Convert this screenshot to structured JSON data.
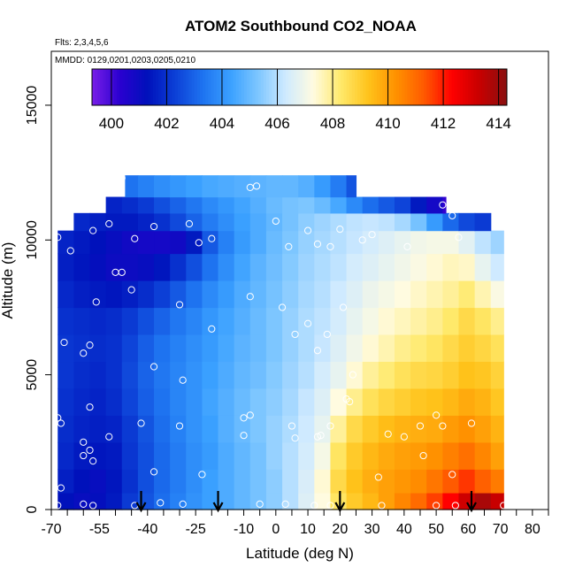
{
  "chart_data": {
    "type": "heatmap",
    "title": "ATOM2 Southbound CO2_NOAA",
    "flights_note": "Flts: 2,3,4,5,6",
    "dates_note": "MMDD: 0129,0201,0203,0205,0210",
    "xlabel": "Latitude (deg N)",
    "ylabel": "Altitude (m)",
    "xlim": [
      -70,
      85
    ],
    "ylim": [
      0,
      17000
    ],
    "x_ticks": [
      -70,
      -55,
      -40,
      -25,
      -10,
      0,
      10,
      20,
      30,
      40,
      50,
      60,
      70,
      80
    ],
    "x_tick_labels": [
      "-70",
      "-55",
      "-40",
      "-25",
      "-10",
      "0",
      "10",
      "20",
      "30",
      "40",
      "50",
      "60",
      "70",
      "80"
    ],
    "x_minor_ticks": [
      -65,
      -60,
      -50,
      -45,
      -35,
      -30,
      -20,
      -15,
      -5,
      5,
      15,
      25,
      35,
      45,
      55,
      65,
      75,
      85
    ],
    "y_ticks": [
      0,
      5000,
      10000,
      15000
    ],
    "y_tick_labels": [
      "0",
      "5000",
      "10000",
      "15000"
    ],
    "colorbar": {
      "range": [
        399.3,
        414.3
      ],
      "ticks": [
        400,
        402,
        404,
        406,
        408,
        410,
        412,
        414
      ],
      "tick_labels": [
        "400",
        "402",
        "404",
        "406",
        "408",
        "410",
        "412",
        "414"
      ],
      "colors": [
        "#7a1fe8",
        "#2a00d0",
        "#0011bb",
        "#0c3fd6",
        "#1e73f0",
        "#3aa0ff",
        "#7dc6ff",
        "#cfeaff",
        "#fffbe0",
        "#ffe96a",
        "#ffc21a",
        "#ff9100",
        "#ff5a00",
        "#ff0000",
        "#c80000",
        "#8a1010"
      ]
    },
    "lat_bins": [
      -68,
      -63,
      -58,
      -53,
      -48,
      -43,
      -38,
      -33,
      -28,
      -23,
      -18,
      -13,
      -8,
      -3,
      2,
      7,
      12,
      17,
      22,
      27,
      32,
      37,
      42,
      47,
      52,
      57,
      62,
      67,
      71
    ],
    "altitude_rows": [
      {
        "alt": 250,
        "co2": [
          401.3,
          401.1,
          401.2,
          401.5,
          402.2,
          402.7,
          403.2,
          403.6,
          404,
          404.3,
          404.6,
          404.9,
          405.2,
          405.5,
          406,
          406.6,
          407.3,
          408.4,
          409.1,
          409.5,
          410,
          410.5,
          411,
          411.6,
          412.3,
          413.2,
          413.8,
          413.3
        ]
      },
      {
        "alt": 1000,
        "co2": [
          401.6,
          401.3,
          401.1,
          401.4,
          402,
          402.6,
          403.1,
          403.5,
          403.9,
          404.3,
          404.6,
          404.9,
          405.2,
          405.5,
          406,
          406.5,
          407.4,
          408.7,
          409.3,
          409.7,
          410,
          410.2,
          410.4,
          410.8,
          411.3,
          411.7,
          411.2,
          410.7
        ]
      },
      {
        "alt": 2000,
        "co2": [
          401.8,
          401.5,
          401.4,
          401.5,
          402.1,
          402.6,
          403.1,
          403.5,
          403.9,
          404.2,
          404.6,
          404.9,
          405.2,
          405.6,
          406,
          406.4,
          407.1,
          408.4,
          409.1,
          409.5,
          409.8,
          410,
          410.1,
          410.3,
          410.6,
          410.9,
          410.5,
          410
        ]
      },
      {
        "alt": 3000,
        "co2": [
          401.9,
          401.7,
          401.6,
          401.7,
          402.2,
          402.7,
          403.2,
          403.6,
          404,
          404.3,
          404.7,
          405,
          405.3,
          405.6,
          405.9,
          406.3,
          406.8,
          407.9,
          408.7,
          409.1,
          409.4,
          409.6,
          409.7,
          409.8,
          410.1,
          410.3,
          410,
          409.6
        ]
      },
      {
        "alt": 4000,
        "co2": [
          402,
          401.8,
          401.7,
          401.9,
          402.4,
          402.9,
          403.3,
          403.7,
          404,
          404.4,
          404.7,
          405,
          405.3,
          405.5,
          405.8,
          406.2,
          406.6,
          407.3,
          408,
          408.5,
          408.8,
          409,
          409.2,
          409.3,
          409.5,
          409.8,
          409.6,
          409.2
        ]
      },
      {
        "alt": 5000,
        "co2": [
          402.1,
          401.9,
          401.8,
          402,
          402.5,
          403,
          403.4,
          403.7,
          404,
          404.3,
          404.6,
          404.9,
          405.1,
          405.4,
          405.7,
          406,
          406.4,
          406.8,
          407.4,
          407.9,
          408.2,
          408.5,
          408.7,
          408.8,
          409,
          409.3,
          409.2,
          408.9
        ]
      },
      {
        "alt": 6000,
        "co2": [
          402.1,
          402,
          401.9,
          402,
          402.4,
          402.9,
          403.3,
          403.6,
          403.9,
          404.2,
          404.5,
          404.8,
          405,
          405.3,
          405.6,
          405.9,
          406.2,
          406.6,
          407,
          407.4,
          407.7,
          408,
          408.2,
          408.4,
          408.7,
          409,
          408.8,
          408.5
        ]
      },
      {
        "alt": 7000,
        "co2": [
          402,
          401.9,
          401.8,
          401.9,
          402.2,
          402.6,
          403,
          403.4,
          403.7,
          404.1,
          404.4,
          404.7,
          405,
          405.3,
          405.6,
          405.9,
          406.1,
          406.4,
          406.8,
          407.1,
          407.4,
          407.6,
          407.8,
          408,
          408.3,
          408.7,
          408.4,
          408
        ]
      },
      {
        "alt": 8000,
        "co2": [
          401.8,
          401.6,
          401.5,
          401.4,
          401.6,
          401.9,
          402.3,
          402.8,
          403.3,
          403.8,
          404.2,
          404.6,
          404.9,
          405.2,
          405.5,
          405.8,
          406,
          406.3,
          406.6,
          406.9,
          407.1,
          407.3,
          407.5,
          407.7,
          407.9,
          408.2,
          407.7,
          407.2
        ]
      },
      {
        "alt": 9000,
        "co2": [
          401.6,
          401.4,
          401.2,
          401,
          401,
          401.1,
          401.4,
          402,
          402.6,
          403.3,
          403.9,
          404.4,
          404.8,
          405.1,
          405.4,
          405.7,
          405.9,
          406.1,
          406.4,
          406.6,
          406.8,
          407,
          407.2,
          407.4,
          407.6,
          407.5,
          406.8,
          406.3
        ]
      },
      {
        "alt": 10000,
        "co2": [
          401.7,
          401.5,
          401.3,
          401.1,
          400.9,
          400.8,
          400.8,
          400.9,
          401.5,
          402.8,
          403.6,
          404.2,
          404.6,
          405,
          405.3,
          405.6,
          405.8,
          406,
          406.2,
          406.4,
          406.6,
          406.8,
          407,
          407.1,
          407.1,
          406.7,
          406.1,
          405.7
        ]
      },
      {
        "alt": 10700,
        "co2": [
          401.9,
          401.8,
          401.6,
          401.5,
          401.5,
          401.7,
          402,
          402.5,
          403,
          403.5,
          403.9,
          404.3,
          404.6,
          404.9,
          405.2,
          405.5,
          405.7,
          405.9,
          406.1,
          406.2,
          406.1,
          405.8,
          405.2,
          404.2,
          403.1,
          402.5,
          402.2,
          null
        ]
      },
      {
        "alt": 11300,
        "co2": [
          null,
          null,
          null,
          401.7,
          401.9,
          402.2,
          402.6,
          403,
          403.4,
          403.8,
          404.1,
          404.4,
          404.7,
          405,
          405.2,
          405.3,
          405,
          404.5,
          403.8,
          403.2,
          402.8,
          402.4,
          401.5,
          400.8,
          400.2,
          399.8,
          null,
          null
        ]
      },
      {
        "alt": 11900,
        "co2": [
          null,
          null,
          null,
          null,
          403.3,
          403.6,
          403.9,
          404.1,
          404.3,
          404.5,
          404.6,
          404.7,
          404.8,
          404.9,
          404.9,
          404.7,
          404.2,
          403.5,
          402.7,
          402.2,
          null,
          null,
          null,
          null,
          null,
          null,
          null,
          null
        ]
      }
    ],
    "row_extents": [
      {
        "alt": 250,
        "lat_min": -68,
        "lat_max": 71
      },
      {
        "alt": 1000,
        "lat_min": -68,
        "lat_max": 71
      },
      {
        "alt": 2000,
        "lat_min": -68,
        "lat_max": 71
      },
      {
        "alt": 3000,
        "lat_min": -68,
        "lat_max": 71
      },
      {
        "alt": 4000,
        "lat_min": -68,
        "lat_max": 71
      },
      {
        "alt": 5000,
        "lat_min": -68,
        "lat_max": 71
      },
      {
        "alt": 6000,
        "lat_min": -68,
        "lat_max": 71
      },
      {
        "alt": 7000,
        "lat_min": -68,
        "lat_max": 71
      },
      {
        "alt": 8000,
        "lat_min": -68,
        "lat_max": 71
      },
      {
        "alt": 9000,
        "lat_min": -68,
        "lat_max": 71
      },
      {
        "alt": 10000,
        "lat_min": -68,
        "lat_max": 71
      },
      {
        "alt": 10700,
        "lat_min": -63,
        "lat_max": 68
      },
      {
        "alt": 11300,
        "lat_min": -55,
        "lat_max": 53
      },
      {
        "alt": 11900,
        "lat_min": -47,
        "lat_max": 25
      }
    ],
    "sample_points": [
      {
        "lat": -48,
        "alt": 12300
      },
      {
        "lat": -52,
        "alt": 11950
      },
      {
        "lat": -8,
        "alt": 11950
      },
      {
        "lat": -6,
        "alt": 12000
      },
      {
        "lat": -52,
        "alt": 10600
      },
      {
        "lat": -38,
        "alt": 10500
      },
      {
        "lat": -27,
        "alt": 10600
      },
      {
        "lat": 0,
        "alt": 10700
      },
      {
        "lat": 10,
        "alt": 10350
      },
      {
        "lat": 20,
        "alt": 10400
      },
      {
        "lat": 52,
        "alt": 11300
      },
      {
        "lat": 55,
        "alt": 10900
      },
      {
        "lat": -68,
        "alt": 10100
      },
      {
        "lat": -57,
        "alt": 10350
      },
      {
        "lat": -44,
        "alt": 10050
      },
      {
        "lat": -24,
        "alt": 9900
      },
      {
        "lat": -20,
        "alt": 10050
      },
      {
        "lat": 4,
        "alt": 9750
      },
      {
        "lat": 13,
        "alt": 9850
      },
      {
        "lat": 17,
        "alt": 9750
      },
      {
        "lat": 27,
        "alt": 10000
      },
      {
        "lat": 30,
        "alt": 10200
      },
      {
        "lat": 41,
        "alt": 9750
      },
      {
        "lat": 57,
        "alt": 10100
      },
      {
        "lat": -64,
        "alt": 9600
      },
      {
        "lat": -50,
        "alt": 8800
      },
      {
        "lat": -48,
        "alt": 8800
      },
      {
        "lat": -45,
        "alt": 8150
      },
      {
        "lat": -56,
        "alt": 7700
      },
      {
        "lat": -8,
        "alt": 7900
      },
      {
        "lat": 2,
        "alt": 7500
      },
      {
        "lat": -30,
        "alt": 7600
      },
      {
        "lat": 21,
        "alt": 7500
      },
      {
        "lat": 10,
        "alt": 6900
      },
      {
        "lat": 16,
        "alt": 6500
      },
      {
        "lat": -20,
        "alt": 6700
      },
      {
        "lat": 6,
        "alt": 6500
      },
      {
        "lat": -66,
        "alt": 6200
      },
      {
        "lat": -58,
        "alt": 6100
      },
      {
        "lat": 13,
        "alt": 5900
      },
      {
        "lat": -60,
        "alt": 5800
      },
      {
        "lat": -38,
        "alt": 5300
      },
      {
        "lat": 24,
        "alt": 5000
      },
      {
        "lat": -29,
        "alt": 4800
      },
      {
        "lat": 22,
        "alt": 4100
      },
      {
        "lat": 23,
        "alt": 4000
      },
      {
        "lat": -58,
        "alt": 3800
      },
      {
        "lat": -8,
        "alt": 3500
      },
      {
        "lat": -10,
        "alt": 3400
      },
      {
        "lat": -68,
        "alt": 3400
      },
      {
        "lat": -67,
        "alt": 3200
      },
      {
        "lat": 50,
        "alt": 3500
      },
      {
        "lat": 17,
        "alt": 3100
      },
      {
        "lat": -30,
        "alt": 3100
      },
      {
        "lat": 5,
        "alt": 3100
      },
      {
        "lat": 52,
        "alt": 3100
      },
      {
        "lat": 61,
        "alt": 3200
      },
      {
        "lat": -42,
        "alt": 3200
      },
      {
        "lat": 45,
        "alt": 3100
      },
      {
        "lat": 35,
        "alt": 2800
      },
      {
        "lat": -52,
        "alt": 2700
      },
      {
        "lat": 13,
        "alt": 2700
      },
      {
        "lat": 14,
        "alt": 2750
      },
      {
        "lat": -10,
        "alt": 2750
      },
      {
        "lat": 6,
        "alt": 2650
      },
      {
        "lat": 40,
        "alt": 2700
      },
      {
        "lat": -60,
        "alt": 2500
      },
      {
        "lat": -58,
        "alt": 2200
      },
      {
        "lat": -60,
        "alt": 2000
      },
      {
        "lat": -57,
        "alt": 1800
      },
      {
        "lat": 46,
        "alt": 2000
      },
      {
        "lat": -38,
        "alt": 1400
      },
      {
        "lat": -23,
        "alt": 1300
      },
      {
        "lat": 32,
        "alt": 1200
      },
      {
        "lat": 55,
        "alt": 1300
      },
      {
        "lat": -67,
        "alt": 800
      },
      {
        "lat": -60,
        "alt": 200
      },
      {
        "lat": -57,
        "alt": 150
      },
      {
        "lat": -44,
        "alt": 150
      },
      {
        "lat": -36,
        "alt": 250
      },
      {
        "lat": -29,
        "alt": 200
      },
      {
        "lat": -5,
        "alt": 200
      },
      {
        "lat": 3,
        "alt": 200
      },
      {
        "lat": 12,
        "alt": 150
      },
      {
        "lat": 17,
        "alt": 150
      },
      {
        "lat": 33,
        "alt": 150
      },
      {
        "lat": 50,
        "alt": 150
      },
      {
        "lat": 56,
        "alt": 150
      },
      {
        "lat": 71,
        "alt": 150
      },
      {
        "lat": -68,
        "alt": 150
      }
    ],
    "arrow_markers": [
      -42,
      -18,
      20,
      61
    ]
  }
}
